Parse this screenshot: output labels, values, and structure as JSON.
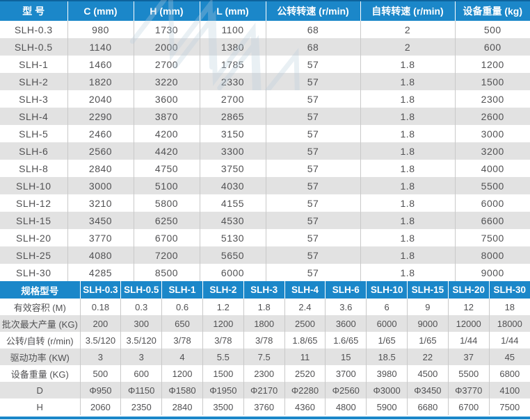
{
  "colors": {
    "header_blue": "#1b87c9",
    "header_blue_dark": "#0e639c",
    "row_alt_gray": "#e2e2e2",
    "cell_border": "#c9c9c9",
    "text_color": "#515153",
    "header_text": "#ffffff",
    "bottom_line": "#1b87c9"
  },
  "table1": {
    "headers": [
      "型 号",
      "C (mm)",
      "H (mm)",
      "L (mm)",
      "公转转速 (r/min)",
      "自转转速 (r/min)",
      "设备重量 (kg)"
    ],
    "rows": [
      [
        "SLH-0.3",
        "980",
        "1730",
        "1100",
        "68",
        "2",
        "500"
      ],
      [
        "SLH-0.5",
        "1140",
        "2000",
        "1380",
        "68",
        "2",
        "600"
      ],
      [
        "SLH-1",
        "1460",
        "2700",
        "1785",
        "57",
        "1.8",
        "1200"
      ],
      [
        "SLH-2",
        "1820",
        "3220",
        "2330",
        "57",
        "1.8",
        "1500"
      ],
      [
        "SLH-3",
        "2040",
        "3600",
        "2700",
        "57",
        "1.8",
        "2300"
      ],
      [
        "SLH-4",
        "2290",
        "3870",
        "2865",
        "57",
        "1.8",
        "2600"
      ],
      [
        "SLH-5",
        "2460",
        "4200",
        "3150",
        "57",
        "1.8",
        "3000"
      ],
      [
        "SLH-6",
        "2560",
        "4420",
        "3300",
        "57",
        "1.8",
        "3200"
      ],
      [
        "SLH-8",
        "2840",
        "4750",
        "3750",
        "57",
        "1.8",
        "4000"
      ],
      [
        "SLH-10",
        "3000",
        "5100",
        "4030",
        "57",
        "1.8",
        "5500"
      ],
      [
        "SLH-12",
        "3210",
        "5800",
        "4155",
        "57",
        "1.8",
        "6000"
      ],
      [
        "SLH-15",
        "3450",
        "6250",
        "4530",
        "57",
        "1.8",
        "6600"
      ],
      [
        "SLH-20",
        "3770",
        "6700",
        "5130",
        "57",
        "1.8",
        "7500"
      ],
      [
        "SLH-25",
        "4080",
        "7200",
        "5650",
        "57",
        "1.8",
        "8000"
      ],
      [
        "SLH-30",
        "4285",
        "8500",
        "6000",
        "57",
        "1.8",
        "9000"
      ]
    ]
  },
  "table2": {
    "headers": [
      "规格型号",
      "SLH-0.3",
      "SLH-0.5",
      "SLH-1",
      "SLH-2",
      "SLH-3",
      "SLH-4",
      "SLH-6",
      "SLH-10",
      "SLH-15",
      "SLH-20",
      "SLH-30"
    ],
    "rows": [
      [
        "有效容积 (M)",
        "0.18",
        "0.3",
        "0.6",
        "1.2",
        "1.8",
        "2.4",
        "3.6",
        "6",
        "9",
        "12",
        "18"
      ],
      [
        "批次最大产量 (KG)",
        "200",
        "300",
        "650",
        "1200",
        "1800",
        "2500",
        "3600",
        "6000",
        "9000",
        "12000",
        "18000"
      ],
      [
        "公转/自转 (r/min)",
        "3.5/120",
        "3.5/120",
        "3/78",
        "3/78",
        "3/78",
        "1.8/65",
        "1.6/65",
        "1/65",
        "1/65",
        "1/44",
        "1/44"
      ],
      [
        "驱动功率 (KW)",
        "3",
        "3",
        "4",
        "5.5",
        "7.5",
        "11",
        "15",
        "18.5",
        "22",
        "37",
        "45"
      ],
      [
        "设备重量 (KG)",
        "500",
        "600",
        "1200",
        "1500",
        "2300",
        "2520",
        "3700",
        "3980",
        "4500",
        "5500",
        "6800"
      ],
      [
        "D",
        "Φ950",
        "Φ1150",
        "Φ1580",
        "Φ1950",
        "Φ2170",
        "Φ2280",
        "Φ2560",
        "Φ3000",
        "Φ3450",
        "Φ3770",
        "4100"
      ],
      [
        "H",
        "2060",
        "2350",
        "2840",
        "3500",
        "3760",
        "4360",
        "4800",
        "5900",
        "6680",
        "6700",
        "7500"
      ]
    ]
  }
}
